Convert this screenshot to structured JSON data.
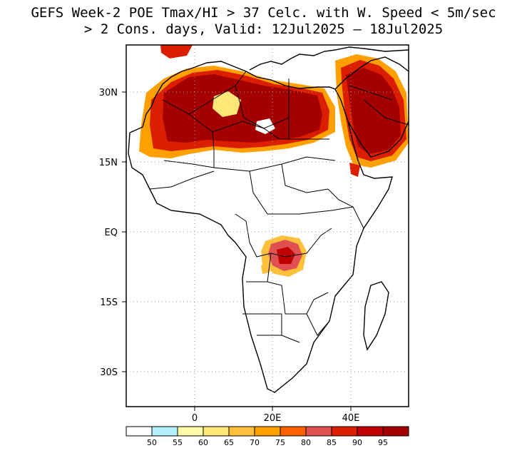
{
  "title": {
    "line1": "GEFS Week-2 POE Tmax/HI > 37 Celc. with W. Speed < 5m/sec",
    "line2": "> 2 Cons. days, Valid: 12Jul2025 – 18Jul2025"
  },
  "map": {
    "region": "Africa and Arabian Peninsula",
    "lat_labels": [
      "30N",
      "15N",
      "EQ",
      "15S",
      "30S"
    ],
    "lon_labels": [
      "0",
      "20E",
      "40E"
    ],
    "grid": "dotted"
  },
  "colorbar": {
    "labels": [
      "50",
      "55",
      "60",
      "65",
      "70",
      "75",
      "80",
      "85",
      "90",
      "95"
    ],
    "colors": [
      "#ffffff",
      "#b4f0fa",
      "#fffaaa",
      "#ffe878",
      "#ffc03c",
      "#ffa000",
      "#ff6000",
      "#e15050",
      "#dc1e00",
      "#c00000",
      "#a50000"
    ]
  }
}
